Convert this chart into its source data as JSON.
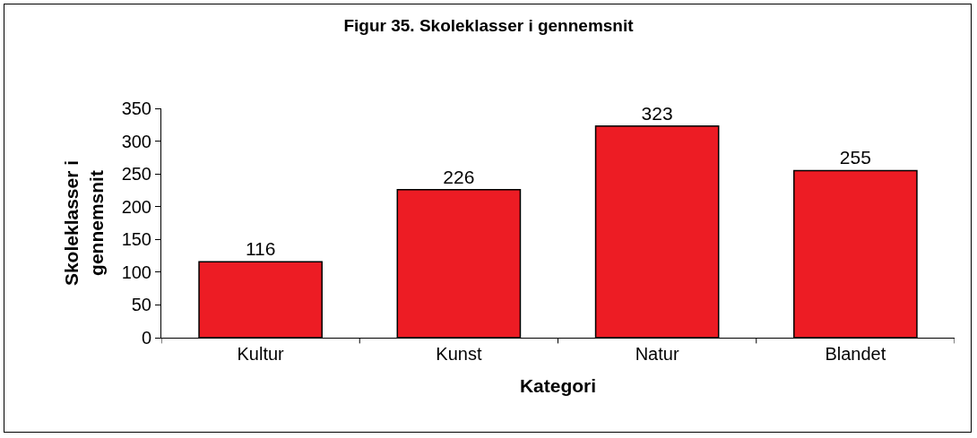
{
  "chart_data": {
    "type": "bar",
    "title": "Figur 35. Skoleklasser i gennemsnit",
    "xlabel": "Kategori",
    "ylabel": "Skoleklasser i gennemsnit",
    "categories": [
      "Kultur",
      "Kunst",
      "Natur",
      "Blandet"
    ],
    "values": [
      116,
      226,
      323,
      255
    ],
    "color": "#ed1c24",
    "ylim": [
      0,
      350
    ],
    "yticks": [
      0,
      50,
      100,
      150,
      200,
      250,
      300,
      350
    ],
    "grid": false,
    "legend": false,
    "data_labels": true
  }
}
